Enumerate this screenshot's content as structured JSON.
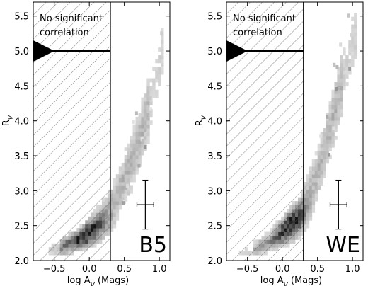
{
  "chart_data": [
    {
      "type": "heatmap",
      "panel_label": "B5",
      "xlabel": "log A",
      "xlabel_sub": "V",
      "xlabel_suffix": " (Mags)",
      "ylabel": "R",
      "ylabel_sub": "V",
      "xlim": [
        -0.8,
        1.15
      ],
      "ylim": [
        2.0,
        5.7
      ],
      "xticks": [
        -0.5,
        0.0,
        0.5,
        1.0
      ],
      "xtick_labels": [
        "−0.5",
        "0.0",
        "0.5",
        "1.0"
      ],
      "yticks": [
        2.0,
        2.5,
        3.0,
        3.5,
        4.0,
        4.5,
        5.0,
        5.5
      ],
      "ytick_labels": [
        "2.0",
        "2.5",
        "3.0",
        "3.5",
        "4.0",
        "4.5",
        "5.0",
        "5.5"
      ],
      "cutoff_x": 0.3,
      "arrow_y": 5.0,
      "annotation": [
        "No significant",
        "correlation"
      ],
      "hatched_region": "left of cutoff",
      "error_bar": {
        "x": 0.8,
        "y": 2.8,
        "xerr": 0.12,
        "yerr": 0.35
      },
      "trend": [
        [
          -0.5,
          2.15
        ],
        [
          -0.3,
          2.22
        ],
        [
          -0.1,
          2.32
        ],
        [
          0.1,
          2.5
        ],
        [
          0.3,
          2.75
        ],
        [
          0.45,
          3.05
        ],
        [
          0.6,
          3.4
        ],
        [
          0.7,
          3.7
        ],
        [
          0.8,
          4.0
        ],
        [
          0.9,
          4.4
        ],
        [
          1.0,
          4.8
        ]
      ],
      "density_peak": [
        -0.05,
        2.35
      ]
    },
    {
      "type": "heatmap",
      "panel_label": "WE",
      "xlabel": "log A",
      "xlabel_sub": "V",
      "xlabel_suffix": " (Mags)",
      "ylabel": "R",
      "ylabel_sub": "V",
      "xlim": [
        -0.8,
        1.15
      ],
      "ylim": [
        2.0,
        5.7
      ],
      "xticks": [
        -0.5,
        0.0,
        0.5,
        1.0
      ],
      "xtick_labels": [
        "−0.5",
        "0.0",
        "0.5",
        "1.0"
      ],
      "yticks": [
        2.0,
        2.5,
        3.0,
        3.5,
        4.0,
        4.5,
        5.0,
        5.5
      ],
      "ytick_labels": [
        "2.0",
        "2.5",
        "3.0",
        "3.5",
        "4.0",
        "4.5",
        "5.0",
        "5.5"
      ],
      "cutoff_x": 0.3,
      "arrow_y": 5.0,
      "annotation": [
        "No significant",
        "correlation"
      ],
      "hatched_region": "left of cutoff",
      "error_bar": {
        "x": 0.8,
        "y": 2.8,
        "xerr": 0.12,
        "yerr": 0.35
      },
      "trend": [
        [
          -0.4,
          2.15
        ],
        [
          -0.2,
          2.25
        ],
        [
          0.0,
          2.38
        ],
        [
          0.2,
          2.6
        ],
        [
          0.35,
          2.9
        ],
        [
          0.5,
          3.25
        ],
        [
          0.6,
          3.6
        ],
        [
          0.7,
          3.95
        ],
        [
          0.8,
          4.35
        ],
        [
          0.9,
          4.75
        ],
        [
          1.0,
          5.1
        ]
      ],
      "density_peak": [
        0.1,
        2.5
      ]
    }
  ]
}
